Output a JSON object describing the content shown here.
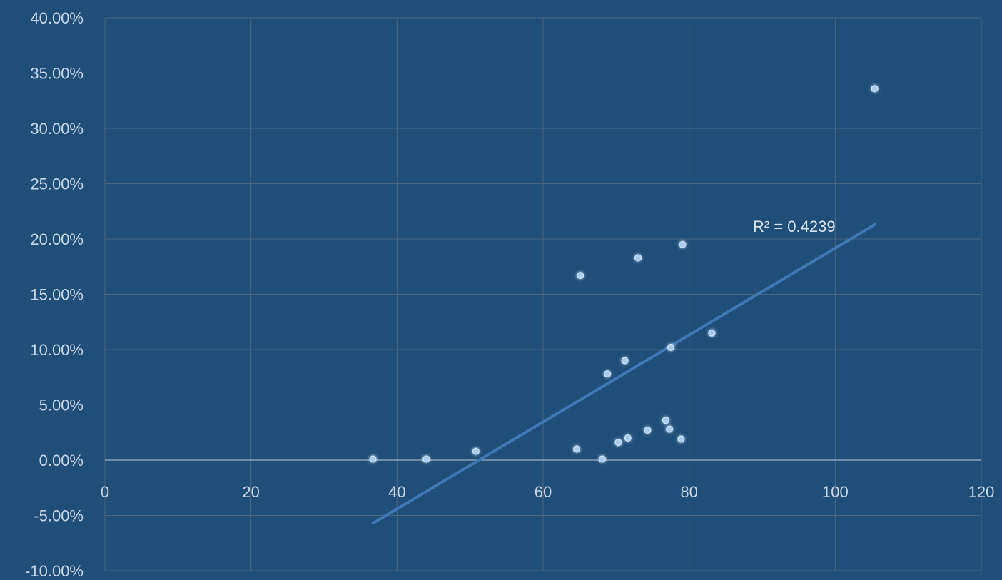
{
  "chart_data": {
    "type": "scatter",
    "title": "",
    "xlabel": "",
    "ylabel": "",
    "xlim": [
      0,
      120
    ],
    "ylim": [
      -10,
      40
    ],
    "x_ticks": [
      0,
      20,
      40,
      60,
      80,
      100,
      120
    ],
    "x_tick_labels": [
      "0",
      "20",
      "40",
      "60",
      "80",
      "100",
      "120"
    ],
    "y_ticks": [
      -10,
      -5,
      0,
      5,
      10,
      15,
      20,
      25,
      30,
      35,
      40
    ],
    "y_tick_labels": [
      "-10.00%",
      "-5.00%",
      "0.00%",
      "5.00%",
      "10.00%",
      "15.00%",
      "20.00%",
      "25.00%",
      "30.00%",
      "35.00%",
      "40.00%"
    ],
    "grid": true,
    "legend": "none",
    "series": [
      {
        "points": [
          {
            "x": 36.7,
            "y": 0.1
          },
          {
            "x": 44.0,
            "y": 0.1
          },
          {
            "x": 50.8,
            "y": 0.8
          },
          {
            "x": 64.6,
            "y": 1.0
          },
          {
            "x": 65.1,
            "y": 16.7
          },
          {
            "x": 68.1,
            "y": 0.1
          },
          {
            "x": 68.8,
            "y": 7.8
          },
          {
            "x": 70.3,
            "y": 1.6
          },
          {
            "x": 71.2,
            "y": 9.0
          },
          {
            "x": 71.6,
            "y": 2.0
          },
          {
            "x": 73.0,
            "y": 18.3
          },
          {
            "x": 74.3,
            "y": 2.7
          },
          {
            "x": 76.8,
            "y": 3.6
          },
          {
            "x": 77.3,
            "y": 2.8
          },
          {
            "x": 77.5,
            "y": 10.2
          },
          {
            "x": 78.9,
            "y": 1.9
          },
          {
            "x": 79.1,
            "y": 19.5
          },
          {
            "x": 83.1,
            "y": 11.5
          },
          {
            "x": 105.4,
            "y": 33.6
          }
        ],
        "trendline": {
          "type": "linear",
          "x_start": 36.7,
          "y_start": -5.7,
          "x_end": 105.4,
          "y_end": 21.3,
          "r_squared_label": "R² = 0.4239"
        }
      }
    ],
    "colors": {
      "background": "#1f4e79",
      "gridline": "#4a6782",
      "axis_line": "#9db3c9",
      "marker": "#a9cdf0",
      "trendline": "#3f78b4",
      "text": "#c9d7e8"
    }
  }
}
